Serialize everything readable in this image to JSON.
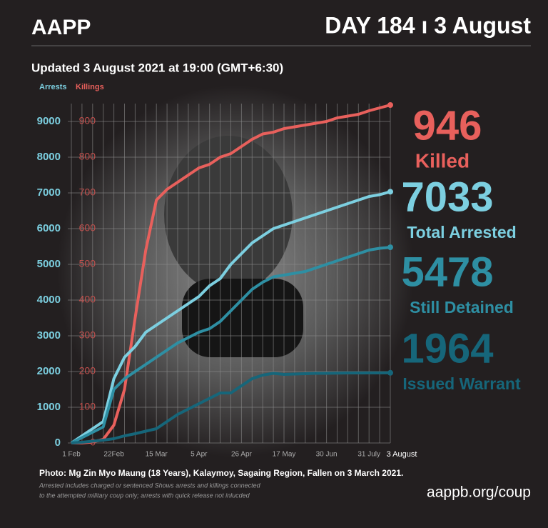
{
  "header": {
    "brand": "AAPP",
    "day": "DAY 184 ı 3 August",
    "updated": "Updated 3 August 2021 at 19:00 (GMT+6:30)"
  },
  "chart_data": {
    "type": "line",
    "y_label": "Arrests",
    "y2_label": "Killings",
    "categories": [
      "1 Feb",
      null,
      null,
      null,
      "22Feb",
      null,
      null,
      null,
      "15 Mar",
      null,
      null,
      null,
      "5 Apr",
      null,
      null,
      null,
      "26 Apr",
      null,
      null,
      null,
      "17 May",
      null,
      null,
      null,
      "30 Jun",
      null,
      null,
      null,
      "31 July",
      null,
      "3 August"
    ],
    "series": [
      {
        "name": "Killings",
        "color": "#e8605c",
        "axis": "y2",
        "values": [
          0,
          0,
          3,
          10,
          50,
          150,
          350,
          540,
          680,
          710,
          730,
          750,
          770,
          780,
          800,
          810,
          830,
          850,
          865,
          870,
          880,
          885,
          890,
          895,
          900,
          910,
          915,
          920,
          930,
          938,
          946
        ]
      },
      {
        "name": "Total Arrested",
        "color": "#7ccfe0",
        "values": [
          0,
          200,
          400,
          600,
          1800,
          2400,
          2700,
          3100,
          3300,
          3500,
          3700,
          3900,
          4100,
          4400,
          4600,
          5000,
          5300,
          5600,
          5800,
          6000,
          6100,
          6200,
          6300,
          6400,
          6500,
          6600,
          6700,
          6800,
          6900,
          6950,
          7033
        ]
      },
      {
        "name": "Still Detained",
        "color": "#2e8fa3",
        "values": [
          0,
          150,
          300,
          450,
          1500,
          1800,
          2000,
          2200,
          2400,
          2600,
          2800,
          2950,
          3100,
          3200,
          3400,
          3700,
          4000,
          4300,
          4500,
          4650,
          4700,
          4750,
          4800,
          4900,
          5000,
          5100,
          5200,
          5300,
          5400,
          5450,
          5478
        ]
      },
      {
        "name": "Issued Warrant",
        "color": "#16667a",
        "values": [
          0,
          20,
          50,
          80,
          120,
          200,
          260,
          330,
          400,
          600,
          800,
          950,
          1100,
          1250,
          1400,
          1400,
          1600,
          1800,
          1900,
          1950,
          1920,
          1930,
          1940,
          1950,
          1950,
          1955,
          1960,
          1960,
          1962,
          1963,
          1964
        ]
      }
    ],
    "ylim": [
      0,
      9500
    ],
    "yticks": [
      0,
      1000,
      2000,
      3000,
      4000,
      5000,
      6000,
      7000,
      8000,
      9000
    ],
    "y2lim": [
      0,
      950
    ],
    "y2ticks": [
      0,
      100,
      200,
      300,
      400,
      500,
      600,
      700,
      800,
      900
    ],
    "grid": true,
    "callouts": [
      {
        "number": 946,
        "text": "Killed",
        "color": "#e8605c"
      },
      {
        "number": 7033,
        "text": "Total Arrested",
        "color": "#7ccfe0"
      },
      {
        "number": 5478,
        "text": "Still Detained",
        "color": "#2e8fa3"
      },
      {
        "number": 1964,
        "text": "Issued Warrant",
        "color": "#16667a"
      }
    ]
  },
  "footer": {
    "photo": "Photo: Mg Zin Myo Maung (18 Years), Kalaymoy, Sagaing Region, Fallen on 3 March 2021.",
    "notes": [
      "Arrested includes charged or sentenced Shows arrests and killings connected",
      "to the attempted military coup only; arrests with quick release not inlucded"
    ],
    "url": "aappb.org/coup"
  }
}
